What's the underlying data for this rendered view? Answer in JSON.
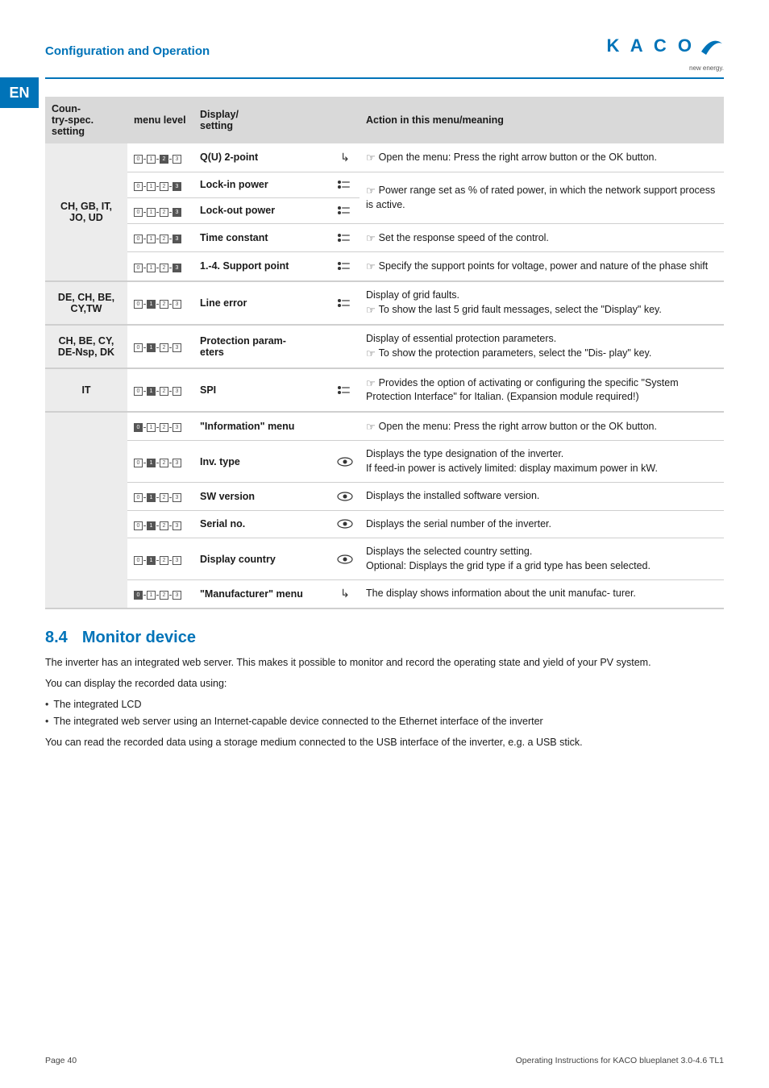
{
  "header": {
    "section": "Configuration and Operation",
    "lang_tab": "EN",
    "logo_text": "K A C O",
    "logo_sub": "new energy."
  },
  "table": {
    "head": {
      "c1": "Coun-\ntry-spec. setting",
      "c2": "menu level",
      "c3": "Display/\nsetting",
      "c4": "Action in this menu/meaning"
    },
    "groups": [
      {
        "country": "CH, GB, IT, JO,  UD",
        "rows": [
          {
            "level": [
              0,
              1,
              2,
              3
            ],
            "active": 2,
            "disp": "Q(U) 2-point",
            "icon": "arrow",
            "action_hand": true,
            "action": "Open the menu: Press the right arrow button or the OK button."
          },
          {
            "level": [
              0,
              1,
              2,
              3
            ],
            "active": 3,
            "disp": "Lock-in power",
            "icon": "slider",
            "action_hand": true,
            "action": "Power range set as % of rated power, in which the network support process is active.",
            "merge_down": true
          },
          {
            "level": [
              0,
              1,
              2,
              3
            ],
            "active": 3,
            "disp": "Lock-out power",
            "icon": "slider",
            "merged": true
          },
          {
            "level": [
              0,
              1,
              2,
              3
            ],
            "active": 3,
            "disp": "Time constant",
            "icon": "slider",
            "action_hand": true,
            "action": "Set the response speed of the control."
          },
          {
            "level": [
              0,
              1,
              2,
              3
            ],
            "active": 3,
            "disp": "1.-4. Support point",
            "icon": "slider",
            "action_hand": true,
            "action": "Specify the support points for voltage, power and nature of the phase shift"
          }
        ]
      },
      {
        "country": "DE, CH, BE, CY,TW",
        "rows": [
          {
            "level": [
              0,
              1,
              2,
              3
            ],
            "active": 1,
            "disp": "Line error",
            "icon": "slider",
            "action_pre": "Display of grid faults.",
            "action_hand": true,
            "action": "To show the last 5 grid fault messages, select the \"Display\" key."
          }
        ]
      },
      {
        "country": "CH, BE, CY, DE-Nsp, DK",
        "rows": [
          {
            "level": [
              0,
              1,
              2,
              3
            ],
            "active": 1,
            "disp": "Protection param-\neters",
            "icon": "",
            "action_pre": "Display of essential protection parameters.",
            "action_hand": true,
            "action": "To show the protection parameters, select the \"Dis-\nplay\" key."
          }
        ]
      },
      {
        "country": "IT",
        "rows": [
          {
            "level": [
              0,
              1,
              2,
              3
            ],
            "active": 1,
            "disp": "SPI",
            "icon": "slider",
            "action_hand": true,
            "action": "Provides the option of activating or configuring the specific \"System Protection Interface\" for Italian. (Expansion module required!)"
          }
        ]
      },
      {
        "country": "",
        "rows": [
          {
            "level": [
              0,
              1,
              2,
              3
            ],
            "active": 0,
            "disp": "\"Information\" menu",
            "icon": "",
            "action_hand": true,
            "action": "Open the menu: Press the right arrow button or the OK button."
          },
          {
            "level": [
              0,
              1,
              2,
              3
            ],
            "active": 1,
            "disp": "Inv. type",
            "icon": "eye",
            "action_pre": "Displays the type designation of the inverter.",
            "action": "If feed-in power is actively limited: display maximum power in kW."
          },
          {
            "level": [
              0,
              1,
              2,
              3
            ],
            "active": 1,
            "disp": "SW version",
            "icon": "eye",
            "action": "Displays the installed software version."
          },
          {
            "level": [
              0,
              1,
              2,
              3
            ],
            "active": 1,
            "disp": "Serial no.",
            "icon": "eye",
            "action": "Displays the serial number of the inverter."
          },
          {
            "level": [
              0,
              1,
              2,
              3
            ],
            "active": 1,
            "disp": "Display country",
            "icon": "eye",
            "action_lines": [
              "Displays the selected country setting.",
              "Optional: Displays the grid type if a grid type has been selected."
            ]
          },
          {
            "level": [
              0,
              1,
              2,
              3
            ],
            "active": 0,
            "disp": "\"Manufacturer\" menu",
            "icon": "arrow",
            "action": "The display shows information about the unit manufac-\nturer."
          }
        ]
      }
    ]
  },
  "section84": {
    "heading_num": "8.4",
    "heading": "Monitor device",
    "p1": "The inverter has an integrated web server. This makes it possible to monitor and record the operating state and yield of your PV system.",
    "p2": "You can display the recorded data using:",
    "b1": "The integrated LCD",
    "b2": "The integrated web server using an Internet-capable device connected to the Ethernet interface of the inverter",
    "p3": "You can read the recorded data using a storage medium connected to the USB interface of the inverter, e.g. a USB stick."
  },
  "footer": {
    "left": "Page 40",
    "right": "Operating Instructions for KACO blueplanet 3.0-4.6 TL1"
  },
  "colors": {
    "blue": "#0073b8",
    "grey_head": "#d9d9d9",
    "grey_cell": "#ececec",
    "rule": "#cfcfcf"
  }
}
